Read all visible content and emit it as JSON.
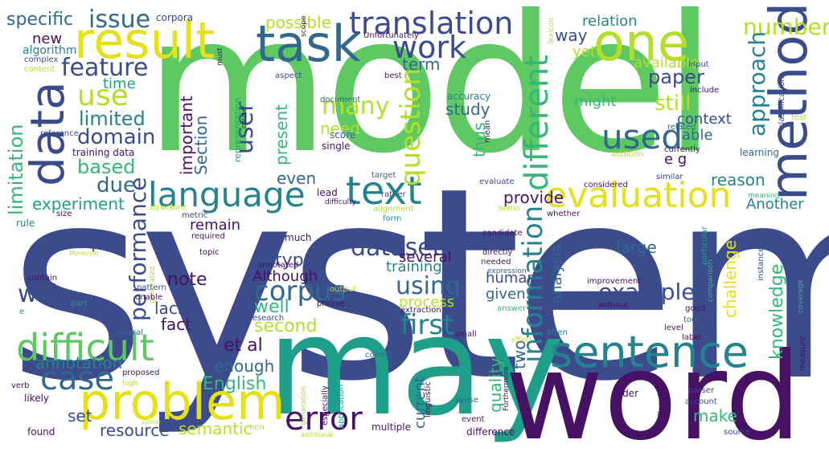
{
  "cloud": {
    "big": {
      "system": "system",
      "model": "model",
      "may": "may",
      "word": "word",
      "one": "one",
      "result": "result",
      "task": "task",
      "method": "method",
      "data": "data",
      "sentence": "sentence",
      "problem": "problem",
      "difficult": "difficult",
      "language": "language",
      "text": "text",
      "evaluation": "evaluation",
      "different": "different",
      "translation": "translation",
      "work": "work",
      "used": "used",
      "error": "error",
      "case": "case",
      "information": "information",
      "corpus": "corpus",
      "first": "first",
      "question": "question",
      "using": "using",
      "use": "use",
      "feature": "feature",
      "dataset": "dataset",
      "example": "example",
      "issue": "issue",
      "performance": "performance",
      "number": "number",
      "approach": "approach"
    },
    "medium": {
      "specific": "specific",
      "domain": "domain",
      "limited": "limited",
      "based": "based",
      "limitation": "limitation",
      "due": "due",
      "experiment": "experiment",
      "will": "will",
      "annotation": "annotation",
      "paper": "paper",
      "still": "still",
      "context": "context",
      "user": "user",
      "many": "many",
      "need": "need",
      "study": "study",
      "thus": "thus",
      "able": "able",
      "eg": "e g",
      "relation": "relation",
      "way": "way",
      "yet": "yet",
      "available": "available",
      "might": "might",
      "reason": "reason",
      "Another": "Another",
      "large": "large",
      "knowledge": "knowledge",
      "challenge": "challenge",
      "make": "make",
      "quality": "quality",
      "two": "two",
      "current": "current",
      "given": "given",
      "human": "human",
      "process": "process",
      "second": "second",
      "well": "well",
      "Although": "Although",
      "type": "type",
      "several": "several",
      "training": "training",
      "enough": "enough",
      "English": "English",
      "set": "set",
      "resource": "resource",
      "semantic": "semantic",
      "etal": "et al",
      "fact": "fact",
      "lack": "lack",
      "note": "note",
      "require": "require",
      "remain": "remain",
      "provide": "provide",
      "analysis": "analysis",
      "even": "even",
      "present": "present",
      "important": "important",
      "Section": "Section",
      "time": "time",
      "new": "new",
      "term": "term",
      "possible": "possible"
    },
    "small": {
      "corpora": "corpora",
      "Unfortunately": "Unfortunately",
      "algorithm": "algorithm",
      "complex": "complex",
      "content": "content",
      "must": "must",
      "aspect": "aspect",
      "best": "best",
      "document": "document",
      "accuracy": "accuracy",
      "score": "score",
      "single": "single",
      "mean": "mean",
      "representation": "representation",
      "cause": "cause",
      "reference": "reference",
      "training_data": "training data",
      "lexicon": "lexicon",
      "input": "input",
      "include": "include",
      "related": "related",
      "currently": "currently",
      "addition": "addition",
      "learning": "learning",
      "classification": "classification",
      "test": "test",
      "scope": "scope",
      "similar": "similar",
      "considered": "considered",
      "meaning": "meaning",
      "better": "better",
      "target": "target",
      "evaluate": "evaluate",
      "lead": "lead",
      "rather": "rather",
      "difficulty": "difficulty",
      "alignment": "alignment",
      "form": "form",
      "whether": "whether",
      "size": "size",
      "rule": "rule",
      "structure": "structure",
      "metric": "metric",
      "required": "required",
      "topic": "topic",
      "Moreover": "Moreover",
      "generated": "generated",
      "much": "much",
      "annotated": "annotated",
      "candidate": "candidate",
      "existing": "existing",
      "directly": "directly",
      "needed": "needed",
      "expression": "expression",
      "instance": "instance",
      "particular": "particular",
      "contain": "contain",
      "pattern": "pattern",
      "unable": "unable",
      "part": "part",
      "e": "e",
      "output": "output",
      "phrase": "phrase",
      "improvement": "improvement",
      "without": "without",
      "comparison": "comparison",
      "good": "good",
      "coverage": "coverage",
      "research": "research",
      "extraction": "extraction",
      "answer": "answer",
      "often": "often",
      "level": "level",
      "label": "label",
      "tool": "tool",
      "measure": "measure",
      "general": "general",
      "small": "small",
      "effect": "effect",
      "u": "u",
      "proposed": "proposed",
      "high": "high",
      "correct": "correct",
      "verb": "verb",
      "likely": "likely",
      "generation": "generation",
      "especially": "especially",
      "application": "application",
      "linguistic": "linguistic",
      "sense": "sense",
      "event": "event",
      "Furthermore": "Furthermore",
      "order": "order",
      "challenging": "challenging",
      "parser": "parser",
      "account": "account",
      "found": "found",
      "non": "non",
      "additional": "additional",
      "multiple": "multiple",
      "difference": "difference",
      "source": "source",
      "space": "space"
    }
  },
  "colors": {
    "navy": "#3b4b8c",
    "indigo": "#46327e",
    "purple": "#471164",
    "darkpurple": "#440154",
    "blue": "#31688e",
    "teal": "#26828e",
    "teal2": "#1f9e89",
    "green": "#35b779",
    "lime": "#5ec962",
    "yellowgreen": "#b5de2b",
    "yellow": "#e4e019"
  }
}
